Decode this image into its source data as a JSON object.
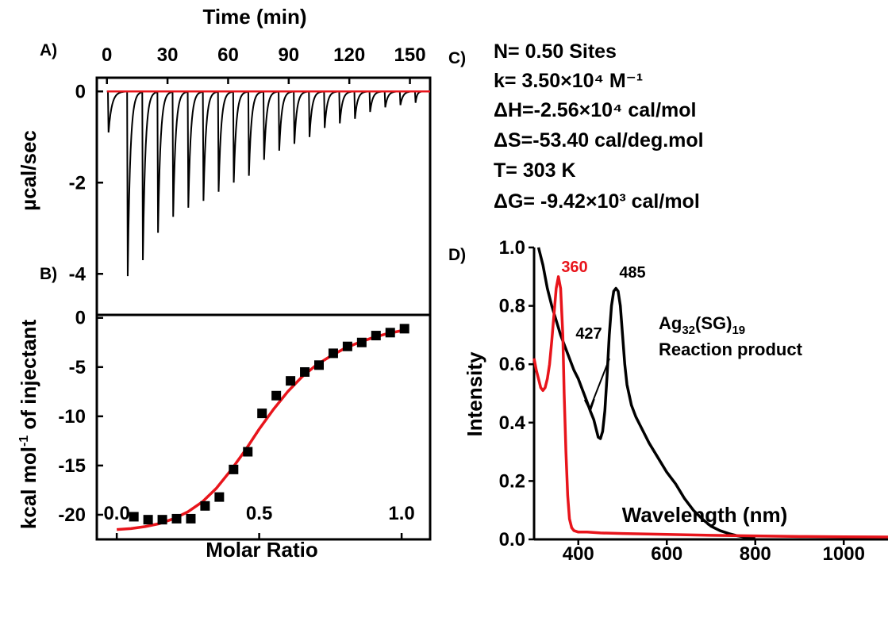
{
  "panel_labels": {
    "a": "A)",
    "b": "B)",
    "c": "C)",
    "d": "D)"
  },
  "colors": {
    "fit": "#e8141b",
    "data": "#000000",
    "params": "#1f46c8",
    "product": "#e8141b"
  },
  "thermo_params": [
    "N= 0.50 Sites",
    "k= 3.50×10⁴ M⁻¹",
    "ΔH=-2.56×10⁴ cal/mol",
    "ΔS=-53.40 cal/deg.mol",
    "T= 303 K",
    "ΔG= -9.42×10³ cal/mol"
  ],
  "chart_data": [
    {
      "id": "A",
      "type": "line",
      "xlabel": "Time (min)",
      "ylabel": "µcal/sec",
      "xlim": [
        -5,
        160
      ],
      "ylim": [
        -4.9,
        0.3
      ],
      "xticks": [
        0,
        30,
        60,
        90,
        120,
        150
      ],
      "yticks": [
        0,
        -2,
        -4
      ],
      "injection_times": [
        0.5,
        10,
        17.5,
        25,
        32.5,
        40,
        47.5,
        55,
        62.5,
        70,
        77.5,
        85,
        92.5,
        100,
        107.5,
        115,
        122.5,
        130,
        137.5,
        145,
        152.5
      ],
      "peak_minima": [
        -0.9,
        -4.05,
        -3.7,
        -3.1,
        -2.75,
        -2.55,
        -2.4,
        -2.2,
        -2.0,
        -1.85,
        -1.5,
        -1.3,
        -1.15,
        -1.0,
        -0.8,
        -0.7,
        -0.6,
        -0.45,
        -0.35,
        -0.3,
        -0.25
      ],
      "baseline": 0
    },
    {
      "id": "B",
      "type": "scatter",
      "xlabel": "Molar Ratio",
      "ylabel": "kcal mol-1 of injectant",
      "xlim": [
        -0.07,
        1.1
      ],
      "ylim": [
        -22.5,
        0.3
      ],
      "xticks": [
        0.0,
        0.5,
        1.0
      ],
      "yticks": [
        0,
        -5,
        -10,
        -15,
        -20
      ],
      "x": [
        0.06,
        0.11,
        0.16,
        0.21,
        0.26,
        0.31,
        0.36,
        0.41,
        0.46,
        0.51,
        0.56,
        0.61,
        0.66,
        0.71,
        0.76,
        0.81,
        0.86,
        0.91,
        0.96,
        1.01
      ],
      "y": [
        -20.2,
        -20.5,
        -20.5,
        -20.4,
        -20.4,
        -19.1,
        -18.2,
        -15.4,
        -13.6,
        -9.7,
        -7.9,
        -6.4,
        -5.5,
        -4.8,
        -3.6,
        -2.9,
        -2.5,
        -1.8,
        -1.5,
        -1.1
      ],
      "fit": {
        "x": [
          0.0,
          0.05,
          0.1,
          0.15,
          0.2,
          0.25,
          0.3,
          0.35,
          0.4,
          0.45,
          0.5,
          0.55,
          0.6,
          0.65,
          0.7,
          0.75,
          0.8,
          0.85,
          0.9,
          0.95,
          1.0,
          1.02
        ],
        "y": [
          -21.5,
          -21.4,
          -21.2,
          -20.9,
          -20.4,
          -19.7,
          -18.7,
          -17.3,
          -15.5,
          -13.5,
          -11.3,
          -9.3,
          -7.5,
          -6.0,
          -4.8,
          -3.9,
          -3.1,
          -2.5,
          -2.0,
          -1.6,
          -1.3,
          -1.2
        ]
      }
    },
    {
      "id": "D",
      "type": "line",
      "xlabel": "Wavelength (nm)",
      "ylabel": "Intensity",
      "xlim": [
        300,
        1100
      ],
      "ylim": [
        0,
        1.0
      ],
      "xticks": [
        400,
        600,
        800,
        1000
      ],
      "yticks": [
        0.0,
        0.2,
        0.4,
        0.6,
        0.8,
        1.0
      ],
      "series": [
        {
          "name": "Ag32(SG)19",
          "x": [
            310,
            320,
            330,
            340,
            350,
            360,
            370,
            380,
            390,
            400,
            410,
            420,
            427,
            435,
            440,
            445,
            450,
            455,
            460,
            465,
            470,
            475,
            480,
            485,
            490,
            495,
            500,
            505,
            510,
            520,
            530,
            540,
            550,
            560,
            580,
            600,
            620,
            640,
            660,
            680,
            700,
            720,
            740,
            760,
            780,
            800
          ],
          "y": [
            1.0,
            0.94,
            0.86,
            0.8,
            0.75,
            0.7,
            0.66,
            0.62,
            0.58,
            0.55,
            0.51,
            0.47,
            0.44,
            0.41,
            0.38,
            0.35,
            0.345,
            0.37,
            0.44,
            0.56,
            0.7,
            0.8,
            0.85,
            0.86,
            0.85,
            0.8,
            0.7,
            0.6,
            0.53,
            0.46,
            0.42,
            0.39,
            0.36,
            0.33,
            0.28,
            0.23,
            0.19,
            0.14,
            0.1,
            0.07,
            0.045,
            0.03,
            0.02,
            0.012,
            0.007,
            0.005
          ]
        },
        {
          "name": "Reaction product",
          "x": [
            300,
            305,
            310,
            315,
            320,
            325,
            330,
            335,
            340,
            345,
            350,
            355,
            360,
            365,
            368,
            372,
            376,
            380,
            385,
            390,
            400,
            420,
            450,
            500,
            600,
            700,
            800,
            900,
            1000,
            1100
          ],
          "y": [
            0.62,
            0.58,
            0.55,
            0.52,
            0.51,
            0.52,
            0.55,
            0.6,
            0.68,
            0.77,
            0.86,
            0.9,
            0.86,
            0.7,
            0.5,
            0.3,
            0.15,
            0.07,
            0.04,
            0.03,
            0.025,
            0.025,
            0.022,
            0.02,
            0.017,
            0.014,
            0.012,
            0.01,
            0.009,
            0.008
          ]
        }
      ],
      "annotations": [
        {
          "text": "360",
          "series": "Reaction product"
        },
        {
          "text": "485",
          "series": "Ag32(SG)19"
        },
        {
          "text": "427",
          "series": "Ag32(SG)19",
          "arrow_to": [
            427,
            0.44
          ]
        }
      ]
    }
  ]
}
